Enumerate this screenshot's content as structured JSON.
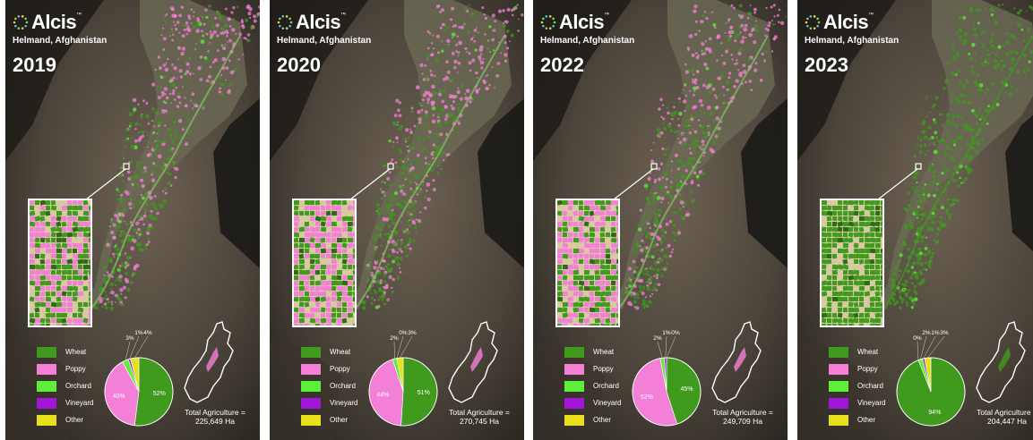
{
  "brand": {
    "name": "Alcis",
    "trademark": "™"
  },
  "location": "Helmand, Afghanistan",
  "colors": {
    "wheat": "#3f9a1e",
    "poppy": "#f47fd6",
    "orchard": "#5cf03a",
    "vineyard": "#a315d8",
    "other": "#e8e01a"
  },
  "legend": [
    "Wheat",
    "Poppy",
    "Orchard",
    "Vineyard",
    "Other"
  ],
  "panels": [
    {
      "year": "2019",
      "total_label": "Total Agriculture =",
      "total_value": "225,649 Ha",
      "dominant": "mixed",
      "pie": {
        "Wheat": 52,
        "Poppy": 40,
        "Orchard": 3,
        "Vineyard": 1,
        "Other": 4
      },
      "labels": [
        {
          "text": "52%",
          "slice": "Wheat",
          "inside": true
        },
        {
          "text": "40%",
          "slice": "Poppy",
          "inside": true
        },
        {
          "text": "3%",
          "slice": "Orchard",
          "inside": false
        },
        {
          "text": "1%",
          "slice": "Vineyard",
          "inside": false
        },
        {
          "text": "4%",
          "slice": "Other",
          "inside": false
        }
      ]
    },
    {
      "year": "2020",
      "total_label": "Total Agriculture =",
      "total_value": "270,745 Ha",
      "dominant": "mixed",
      "pie": {
        "Wheat": 51,
        "Poppy": 44,
        "Orchard": 2,
        "Vineyard": 0,
        "Other": 3
      },
      "labels": [
        {
          "text": "51%",
          "slice": "Wheat",
          "inside": true
        },
        {
          "text": "44%",
          "slice": "Poppy",
          "inside": true
        },
        {
          "text": "2%",
          "slice": "Orchard",
          "inside": false
        },
        {
          "text": "0%",
          "slice": "Vineyard",
          "inside": false
        },
        {
          "text": "3%",
          "slice": "Other",
          "inside": false
        }
      ]
    },
    {
      "year": "2022",
      "total_label": "Total Agriculture =",
      "total_value": "249,709 Ha",
      "dominant": "mixed",
      "pie": {
        "Wheat": 45,
        "Poppy": 52,
        "Orchard": 2,
        "Vineyard": 1,
        "Other": 0
      },
      "labels": [
        {
          "text": "45%",
          "slice": "Wheat",
          "inside": true
        },
        {
          "text": "52%",
          "slice": "Poppy",
          "inside": true
        },
        {
          "text": "2%",
          "slice": "Orchard",
          "inside": false
        },
        {
          "text": "1%",
          "slice": "Vineyard",
          "inside": false
        },
        {
          "text": "0%",
          "slice": "Other",
          "inside": false
        }
      ]
    },
    {
      "year": "2023",
      "total_label": "Total Agriculture =",
      "total_value": "204,447 Ha",
      "dominant": "wheat",
      "pie": {
        "Wheat": 94,
        "Poppy": 0,
        "Orchard": 2,
        "Vineyard": 1,
        "Other": 3
      },
      "labels": [
        {
          "text": "94%",
          "slice": "Wheat",
          "inside": true
        },
        {
          "text": "0%",
          "slice": "Poppy",
          "inside": false
        },
        {
          "text": "2%",
          "slice": "Orchard",
          "inside": false
        },
        {
          "text": "1%",
          "slice": "Vineyard",
          "inside": false
        },
        {
          "text": "3%",
          "slice": "Other",
          "inside": false
        }
      ]
    }
  ]
}
